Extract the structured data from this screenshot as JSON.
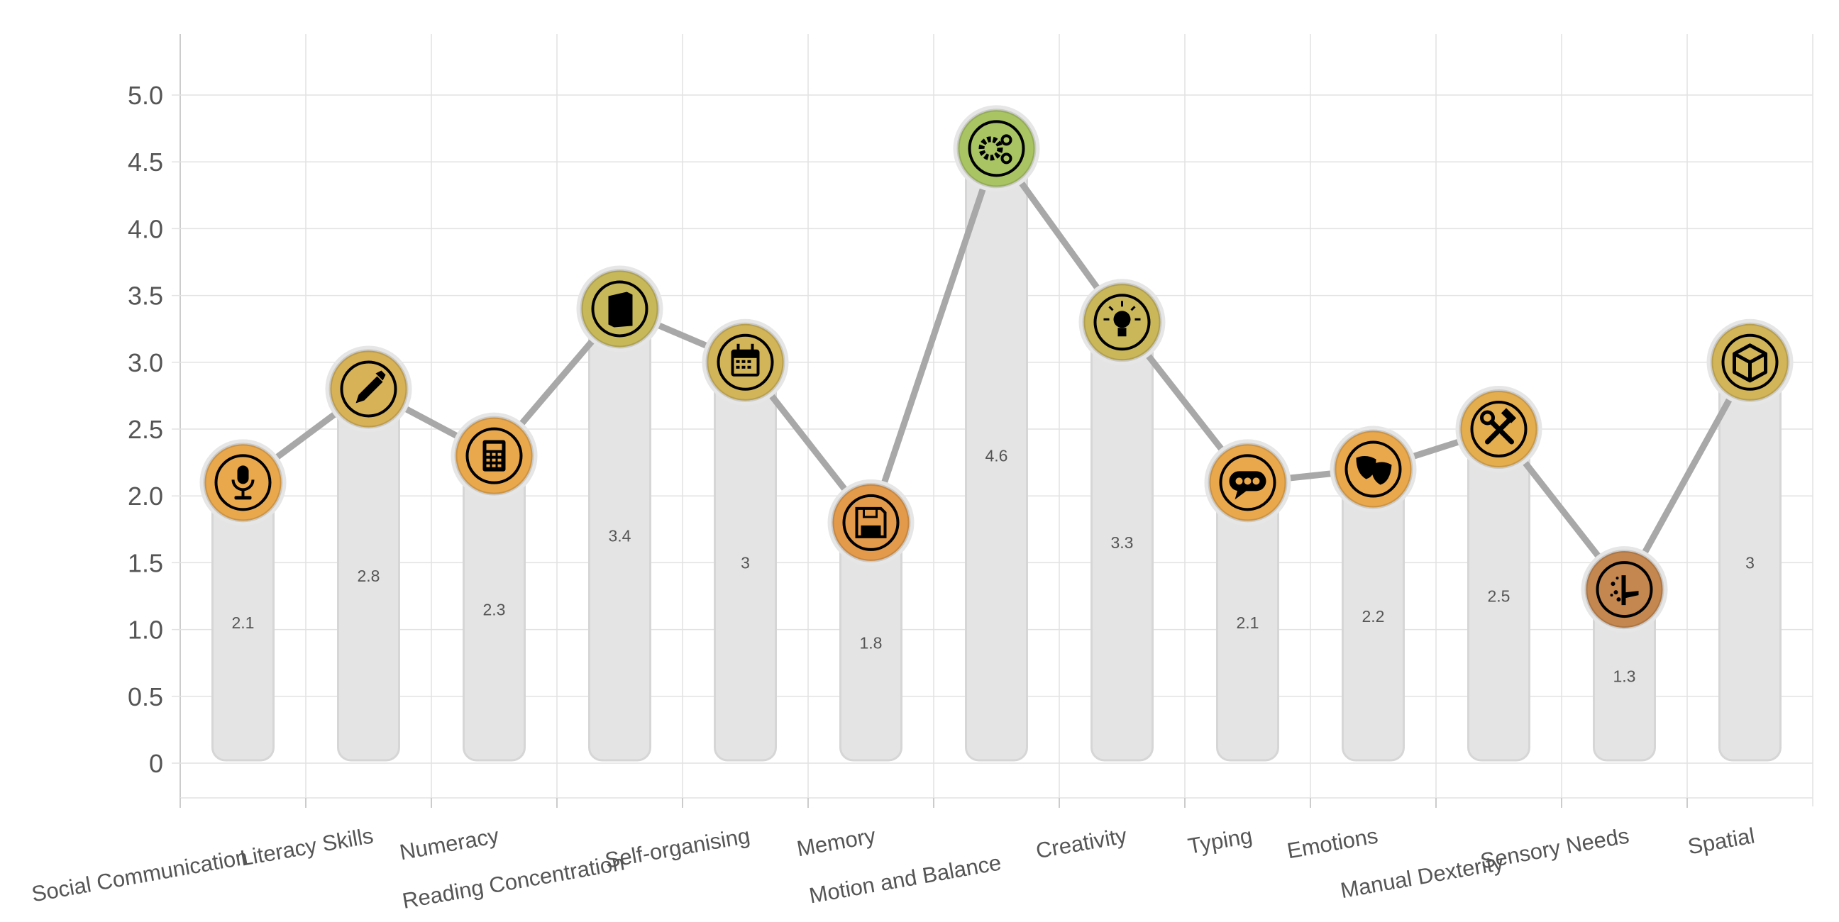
{
  "chart_data": {
    "type": "bar+line",
    "title": "",
    "xlabel": "",
    "ylabel": "",
    "ylim": [
      -0.25,
      5.45
    ],
    "yticks": [
      "0",
      "0.5",
      "1.0",
      "1.5",
      "2.0",
      "2.5",
      "3.0",
      "3.5",
      "4.0",
      "4.5",
      "5.0"
    ],
    "grid": true,
    "categories": [
      "Social Communication",
      "Literacy Skills",
      "Numeracy",
      "Reading Concentration",
      "Self-organising",
      "Memory",
      "Motion and Balance",
      "Creativity",
      "Typing",
      "Emotions",
      "Manual Dexterity",
      "Sensory Needs",
      "Spatial"
    ],
    "values": [
      2.1,
      2.8,
      2.3,
      3.4,
      3,
      1.8,
      4.6,
      3.3,
      2.1,
      2.2,
      2.5,
      1.3,
      3
    ],
    "value_labels": [
      "2.1",
      "2.8",
      "2.3",
      "3.4",
      "3",
      "1.8",
      "4.6",
      "3.3",
      "2.1",
      "2.2",
      "2.5",
      "1.3",
      "3"
    ],
    "icons": [
      "microphone-icon",
      "pen-icon",
      "calculator-icon",
      "book-icon",
      "calendar-icon",
      "floppy-disk-icon",
      "gears-icon",
      "lightbulb-icon",
      "speech-bubble-icon",
      "theater-masks-icon",
      "hammer-wrench-icon",
      "sensory-hand-icon",
      "cube-icon"
    ],
    "marker_colors": [
      "#e9a84c",
      "#d7b257",
      "#e9a84c",
      "#c7b85a",
      "#d2b558",
      "#e39a4a",
      "#a9c462",
      "#c9b75a",
      "#e9a84c",
      "#e9a84c",
      "#e4ad4e",
      "#c4874f",
      "#d2b558"
    ],
    "bar_color": "#e4e4e4",
    "line_color": "#a8a8a8"
  }
}
